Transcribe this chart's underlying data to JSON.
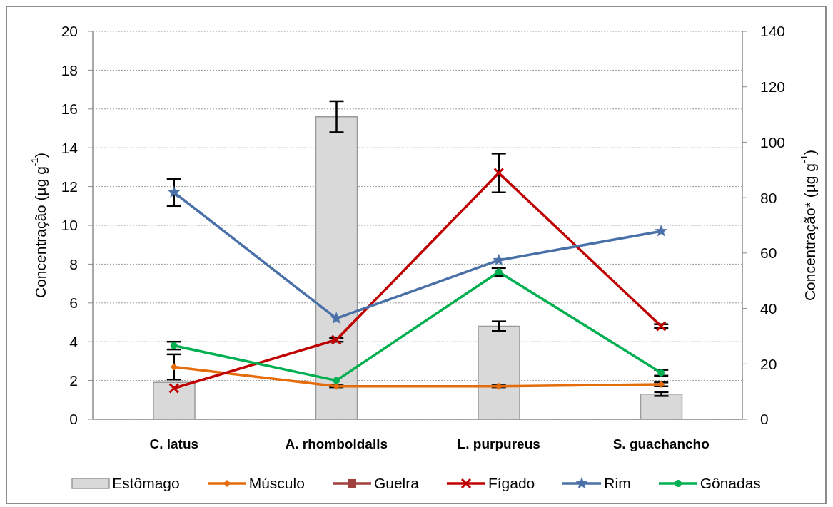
{
  "chart_data": {
    "type": "line",
    "categories": [
      "C. latus",
      "A. rhomboidalis",
      "L. purpureus",
      "S. guachancho"
    ],
    "ylabel": "Concentração (µg g$^{-1}$)",
    "y2label": "Concentração* (µg g$^{-1}$)",
    "ylim": [
      0,
      20
    ],
    "yticks": [
      0,
      2,
      4,
      6,
      8,
      10,
      12,
      14,
      16,
      18,
      20
    ],
    "y2lim": [
      0,
      140
    ],
    "y2ticks": [
      0,
      20,
      40,
      60,
      80,
      100,
      120,
      140
    ],
    "grid": "y",
    "legend": "bottom",
    "series": [
      {
        "name": "Estômago",
        "type": "bar",
        "color": "#d9d9d9",
        "values": [
          1.9,
          15.6,
          4.8,
          1.3
        ],
        "errors": [
          null,
          0.8,
          0.25,
          0.1
        ]
      },
      {
        "name": "Músculo",
        "color": "#e46c0a",
        "marker": "diamond",
        "values": [
          2.7,
          1.7,
          1.7,
          1.8
        ],
        "errors": [
          0.65,
          0.05,
          0.05,
          0.1
        ]
      },
      {
        "name": "Guelra",
        "color": "#a0403c",
        "marker": "square",
        "values": [
          null,
          null,
          null,
          null
        ]
      },
      {
        "name": "Fígado",
        "color": "#c00000",
        "marker": "cross",
        "values": [
          1.6,
          4.1,
          12.7,
          4.8
        ],
        "errors": [
          null,
          0.1,
          1.0,
          0.1
        ]
      },
      {
        "name": "Rim",
        "color": "#4a70a8",
        "marker": "star",
        "values": [
          11.7,
          5.2,
          8.2,
          9.7
        ],
        "errors": [
          0.7,
          null,
          null,
          null
        ]
      },
      {
        "name": "Gônadas",
        "color": "#00b050",
        "marker": "circle",
        "values": [
          3.8,
          2.0,
          7.6,
          2.4
        ],
        "errors": [
          0.2,
          null,
          0.2,
          0.15
        ]
      }
    ]
  }
}
